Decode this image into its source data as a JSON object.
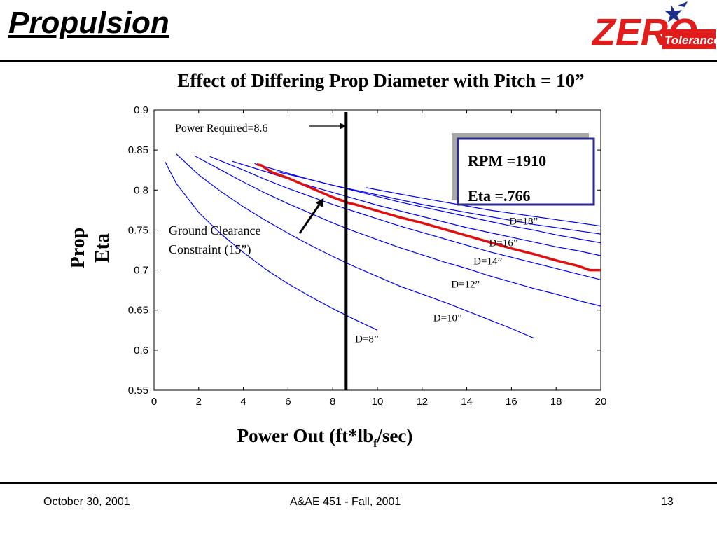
{
  "slide": {
    "title": "Propulsion",
    "footer_date": "October 30, 2001",
    "footer_course": "A&AE 451 - Fall, 2001",
    "page_number": "13"
  },
  "logo": {
    "word": "ZERO",
    "sub": "Tolerance",
    "color": "#e21b1b",
    "star_color": "#1a2e8a"
  },
  "chart_data": {
    "type": "line",
    "title": "Effect of Differing Prop Diameter with Pitch = 10”",
    "xlabel": "Power Out (ft*lb",
    "xlabel_sub": "f",
    "xlabel_end": "/sec)",
    "ylabel_line1": "Prop",
    "ylabel_line2": "Eta",
    "xlim": [
      0,
      20
    ],
    "ylim": [
      0.55,
      0.9
    ],
    "xticks": [
      0,
      2,
      4,
      6,
      8,
      10,
      12,
      14,
      16,
      18,
      20
    ],
    "yticks": [
      0.55,
      0.6,
      0.65,
      0.7,
      0.75,
      0.8,
      0.85,
      0.9
    ],
    "series_color": "#0000ff",
    "series": [
      {
        "name": "D=8”",
        "x": [
          0.5,
          1,
          2,
          3,
          4,
          5,
          6,
          7,
          8,
          9,
          10
        ],
        "y": [
          0.835,
          0.808,
          0.772,
          0.745,
          0.722,
          0.701,
          0.683,
          0.667,
          0.652,
          0.638,
          0.625
        ]
      },
      {
        "name": "D=10”",
        "x": [
          1,
          2,
          3,
          4,
          5,
          6,
          7,
          8,
          9,
          10,
          11,
          12,
          13,
          14,
          15,
          16,
          17
        ],
        "y": [
          0.845,
          0.819,
          0.798,
          0.779,
          0.762,
          0.746,
          0.731,
          0.717,
          0.704,
          0.692,
          0.68,
          0.67,
          0.66,
          0.649,
          0.638,
          0.627,
          0.615
        ]
      },
      {
        "name": "D=12”",
        "x": [
          1.8,
          3,
          4,
          5,
          6,
          7,
          8,
          9,
          10,
          11,
          12,
          13,
          14,
          15,
          16,
          17,
          18,
          19,
          20
        ],
        "y": [
          0.843,
          0.825,
          0.81,
          0.796,
          0.783,
          0.771,
          0.759,
          0.748,
          0.738,
          0.728,
          0.719,
          0.71,
          0.702,
          0.693,
          0.685,
          0.677,
          0.67,
          0.662,
          0.655
        ]
      },
      {
        "name": "D=14”",
        "x": [
          2.5,
          4,
          5,
          6,
          7,
          8,
          9,
          10,
          11,
          12,
          13,
          14,
          15,
          16,
          17,
          18,
          19,
          20
        ],
        "y": [
          0.842,
          0.825,
          0.813,
          0.802,
          0.792,
          0.782,
          0.773,
          0.764,
          0.755,
          0.747,
          0.739,
          0.731,
          0.723,
          0.716,
          0.709,
          0.702,
          0.695,
          0.688
        ]
      },
      {
        "name": "D=16”",
        "x": [
          3.5,
          5,
          6,
          7,
          8,
          9,
          10,
          11,
          12,
          13,
          14,
          15,
          16,
          17,
          18,
          19,
          20
        ],
        "y": [
          0.836,
          0.823,
          0.814,
          0.805,
          0.797,
          0.789,
          0.781,
          0.774,
          0.767,
          0.76,
          0.753,
          0.747,
          0.741,
          0.735,
          0.729,
          0.724,
          0.718
        ]
      },
      {
        "name": "D=18”",
        "x": [
          4.5,
          6,
          7,
          8,
          9,
          10,
          11,
          12,
          13,
          14,
          15,
          16,
          17,
          18,
          19,
          20
        ],
        "y": [
          0.833,
          0.821,
          0.813,
          0.806,
          0.799,
          0.792,
          0.785,
          0.779,
          0.773,
          0.767,
          0.761,
          0.755,
          0.75,
          0.744,
          0.739,
          0.734
        ]
      },
      {
        "name": "",
        "x": [
          5.5,
          7,
          8,
          9,
          10,
          11,
          12,
          13,
          14,
          15,
          16,
          17,
          18,
          19,
          20
        ],
        "y": [
          0.823,
          0.813,
          0.806,
          0.8,
          0.794,
          0.788,
          0.782,
          0.777,
          0.772,
          0.767,
          0.762,
          0.757,
          0.753,
          0.749,
          0.745
        ]
      },
      {
        "name": "",
        "x": [
          9.5,
          11,
          12,
          13,
          14,
          15,
          16,
          17,
          18,
          19,
          20
        ],
        "y": [
          0.803,
          0.795,
          0.79,
          0.785,
          0.78,
          0.775,
          0.771,
          0.767,
          0.763,
          0.759,
          0.755
        ]
      }
    ],
    "highlight": {
      "color": "#e01010",
      "x": [
        4.6,
        4.8,
        5,
        5.3,
        6,
        7,
        7.5,
        8,
        8.7,
        9,
        10,
        11,
        12,
        13,
        14,
        15,
        16,
        17,
        18,
        19,
        19.5,
        20
      ],
      "y": [
        0.832,
        0.831,
        0.827,
        0.822,
        0.815,
        0.803,
        0.797,
        0.791,
        0.784,
        0.782,
        0.774,
        0.766,
        0.759,
        0.751,
        0.743,
        0.735,
        0.727,
        0.72,
        0.712,
        0.705,
        0.7,
        0.7
      ]
    },
    "power_required": {
      "x": 8.6,
      "label": "Power Required=8.6"
    },
    "series_labels": [
      {
        "text": "D=18”",
        "x": 15.9,
        "y": 0.757
      },
      {
        "text": "D=16”",
        "x": 15.0,
        "y": 0.73
      },
      {
        "text": "D=14”",
        "x": 14.3,
        "y": 0.707
      },
      {
        "text": "D=12”",
        "x": 13.3,
        "y": 0.678
      },
      {
        "text": "D=10”",
        "x": 12.5,
        "y": 0.636
      },
      {
        "text": "D=8”",
        "x": 9.0,
        "y": 0.61
      }
    ],
    "annotation": {
      "line1": "Ground Clearance",
      "line2": "Constraint (15”)",
      "arrow_to": {
        "x": 7.6,
        "y": 0.79
      }
    },
    "info_box": {
      "line1": "RPM =1910",
      "line2": "Eta =.766",
      "border_color": "#2a2a8a"
    }
  }
}
